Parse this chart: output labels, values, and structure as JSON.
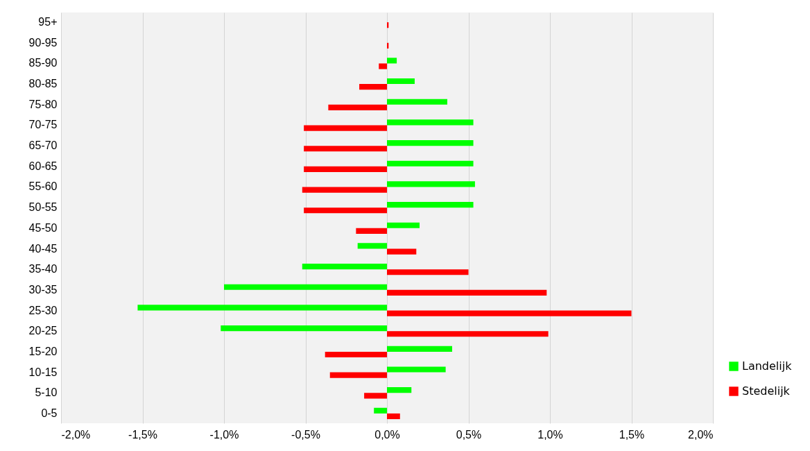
{
  "chart_data": {
    "type": "bar",
    "orientation": "horizontal",
    "categories": [
      "95+",
      "90-95",
      "85-90",
      "80-85",
      "75-80",
      "70-75",
      "65-70",
      "60-65",
      "55-60",
      "50-55",
      "45-50",
      "40-45",
      "35-40",
      "30-35",
      "25-30",
      "20-25",
      "15-20",
      "10-15",
      "5-10",
      "0-5"
    ],
    "series": [
      {
        "name": "Landelijk",
        "color": "#00ff00",
        "values": [
          0,
          0,
          0.06,
          0.17,
          0.37,
          0.53,
          0.53,
          0.53,
          0.54,
          0.53,
          0.2,
          -0.18,
          -0.52,
          -1.0,
          -1.53,
          -1.02,
          0.4,
          0.36,
          0.15,
          -0.08
        ]
      },
      {
        "name": "Stedelijk",
        "color": "#ff0000",
        "values": [
          0.01,
          0.01,
          -0.05,
          -0.17,
          -0.36,
          -0.51,
          -0.51,
          -0.51,
          -0.52,
          -0.51,
          -0.19,
          0.18,
          0.5,
          0.98,
          1.5,
          0.99,
          -0.38,
          -0.35,
          -0.14,
          0.08
        ]
      }
    ],
    "xlim": [
      -2,
      2
    ],
    "xticks": [
      {
        "value": -2,
        "label": "-2,0%"
      },
      {
        "value": -1.5,
        "label": "-1,5%"
      },
      {
        "value": -1,
        "label": "-1,0%"
      },
      {
        "value": -0.5,
        "label": "-0,5%"
      },
      {
        "value": 0,
        "label": "0,0%"
      },
      {
        "value": 0.5,
        "label": "0,5%"
      },
      {
        "value": 1,
        "label": "1,0%"
      },
      {
        "value": 1.5,
        "label": "1,5%"
      },
      {
        "value": 2,
        "label": "2,0%"
      }
    ],
    "grid": "x",
    "legend": "bottom right"
  }
}
